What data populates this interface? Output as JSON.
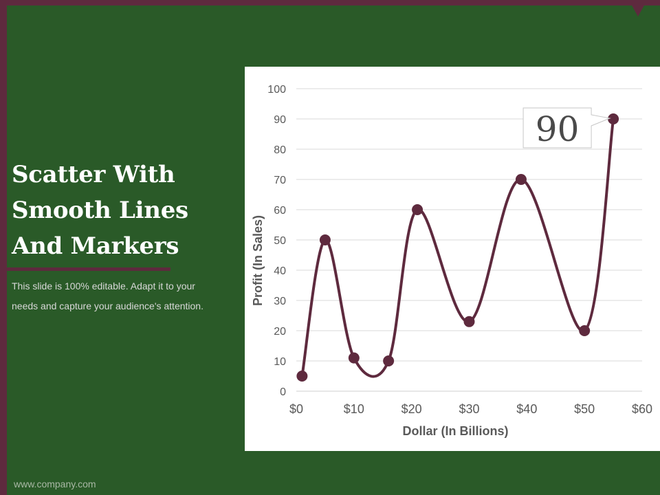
{
  "slide": {
    "title": "Scatter With Smooth Lines And Markers",
    "description": "This slide is 100% editable. Adapt it to your needs and capture your audience's attention.",
    "footer": "www.company.com"
  },
  "colors": {
    "background": "#2a5a28",
    "accent": "#5e2a3e",
    "series": "#5e2a3e",
    "panel": "#ffffff",
    "text_light": "#d8d8d8"
  },
  "chart_data": {
    "type": "scatter",
    "smooth": true,
    "markers": true,
    "title": "",
    "xlabel": "Dollar (In Billions)",
    "ylabel": "Profit  (In Sales)",
    "xlim": [
      0,
      60
    ],
    "ylim": [
      0,
      100
    ],
    "x_ticks": [
      "$0",
      "$10",
      "$20",
      "$30",
      "$40",
      "$50",
      "$60"
    ],
    "y_ticks": [
      "0",
      "10",
      "20",
      "30",
      "40",
      "50",
      "60",
      "70",
      "80",
      "90",
      "100"
    ],
    "grid": true,
    "series": [
      {
        "x": [
          1,
          5,
          10,
          16,
          21,
          30,
          39,
          50,
          55
        ],
        "y": [
          5,
          50,
          11,
          10,
          60,
          23,
          70,
          20,
          90
        ]
      }
    ],
    "annotations": [
      {
        "text": "90",
        "x": 55,
        "y": 90
      }
    ]
  }
}
